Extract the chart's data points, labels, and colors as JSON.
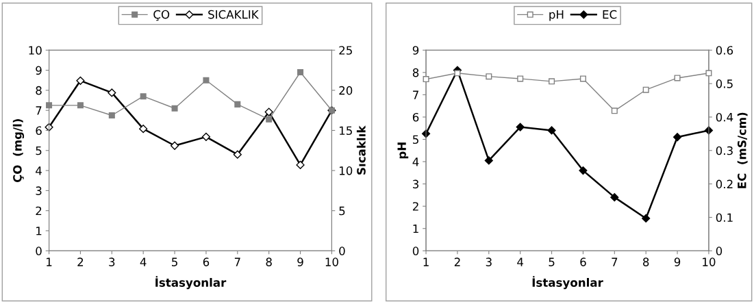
{
  "chart_data": [
    {
      "type": "line",
      "xlabel": "İstasyonlar",
      "ylabel": "ÇO  (mg/l)",
      "y2label": "Sıcaklık",
      "x": [
        1,
        2,
        3,
        4,
        5,
        6,
        7,
        8,
        9,
        10
      ],
      "xlim": [
        1,
        10
      ],
      "xticks": [
        1,
        2,
        3,
        4,
        5,
        6,
        7,
        8,
        9,
        10
      ],
      "ylim": [
        0,
        10
      ],
      "yticks": [
        0,
        1,
        2,
        3,
        4,
        5,
        6,
        7,
        8,
        9,
        10
      ],
      "y2lim": [
        0,
        25
      ],
      "y2ticks": [
        0,
        5,
        10,
        15,
        20,
        25
      ],
      "grid": false,
      "legend": "top",
      "series": [
        {
          "name": "ÇO",
          "color": "#808080",
          "marker": "square",
          "values": [
            7.25,
            7.25,
            6.75,
            7.7,
            7.1,
            8.5,
            7.3,
            6.55,
            8.9,
            7.0
          ]
        },
        {
          "name": "SICAKLIK",
          "color": "#000000",
          "marker": "diamond",
          "axis": "y2",
          "values": [
            15.4,
            21.2,
            19.7,
            15.2,
            13.1,
            14.2,
            12.0,
            17.3,
            10.7,
            17.5
          ]
        }
      ]
    },
    {
      "type": "line",
      "xlabel": "İstasyonlar",
      "ylabel": "pH",
      "y2label": "EC  (mS/cm)",
      "x": [
        1,
        2,
        3,
        4,
        5,
        6,
        7,
        8,
        9,
        10
      ],
      "xlim": [
        1,
        10
      ],
      "xticks": [
        1,
        2,
        3,
        4,
        5,
        6,
        7,
        8,
        9,
        10
      ],
      "ylim": [
        0,
        9
      ],
      "yticks": [
        0,
        1,
        2,
        3,
        4,
        5,
        6,
        7,
        8,
        9
      ],
      "y2lim": [
        0,
        0.6
      ],
      "y2ticks": [
        0,
        0.1,
        0.2,
        0.3,
        0.4,
        0.5,
        0.6
      ],
      "grid": false,
      "legend": "top",
      "series": [
        {
          "name": "pH",
          "color": "#808080",
          "marker": "square",
          "values": [
            7.7,
            7.97,
            7.82,
            7.72,
            7.6,
            7.72,
            6.28,
            7.22,
            7.75,
            7.97
          ]
        },
        {
          "name": "EC",
          "color": "#000000",
          "marker": "diamond",
          "axis": "y2",
          "values": [
            0.35,
            0.54,
            0.27,
            0.37,
            0.36,
            0.24,
            0.16,
            0.097,
            0.34,
            0.36
          ]
        }
      ]
    }
  ]
}
